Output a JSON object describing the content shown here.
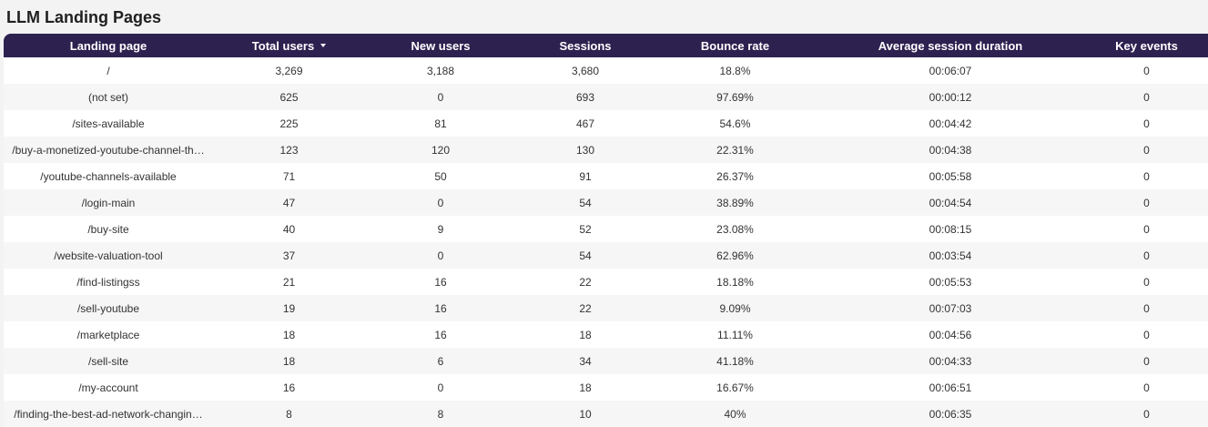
{
  "report": {
    "title": "LLM Landing Pages"
  },
  "table": {
    "headers": [
      "Landing page",
      "Total users",
      "New users",
      "Sessions",
      "Bounce rate",
      "Average session duration",
      "Key events"
    ],
    "sorted_column": "Total users",
    "sort_direction": "descending",
    "header_color": "#2d2150",
    "rows": [
      {
        "page": "/",
        "total_users": "3,269",
        "new_users": "3,188",
        "sessions": "3,680",
        "bounce_rate": "18.8%",
        "avg_duration": "00:06:07",
        "key_events": "0"
      },
      {
        "page": "(not set)",
        "total_users": "625",
        "new_users": "0",
        "sessions": "693",
        "bounce_rate": "97.69%",
        "avg_duration": "00:00:12",
        "key_events": "0"
      },
      {
        "page": "/sites-available",
        "total_users": "225",
        "new_users": "81",
        "sessions": "467",
        "bounce_rate": "54.6%",
        "avg_duration": "00:04:42",
        "key_events": "0"
      },
      {
        "page": "/buy-a-monetized-youtube-channel-th…",
        "total_users": "123",
        "new_users": "120",
        "sessions": "130",
        "bounce_rate": "22.31%",
        "avg_duration": "00:04:38",
        "key_events": "0"
      },
      {
        "page": "/youtube-channels-available",
        "total_users": "71",
        "new_users": "50",
        "sessions": "91",
        "bounce_rate": "26.37%",
        "avg_duration": "00:05:58",
        "key_events": "0"
      },
      {
        "page": "/login-main",
        "total_users": "47",
        "new_users": "0",
        "sessions": "54",
        "bounce_rate": "38.89%",
        "avg_duration": "00:04:54",
        "key_events": "0"
      },
      {
        "page": "/buy-site",
        "total_users": "40",
        "new_users": "9",
        "sessions": "52",
        "bounce_rate": "23.08%",
        "avg_duration": "00:08:15",
        "key_events": "0"
      },
      {
        "page": "/website-valuation-tool",
        "total_users": "37",
        "new_users": "0",
        "sessions": "54",
        "bounce_rate": "62.96%",
        "avg_duration": "00:03:54",
        "key_events": "0"
      },
      {
        "page": "/find-listingss",
        "total_users": "21",
        "new_users": "16",
        "sessions": "22",
        "bounce_rate": "18.18%",
        "avg_duration": "00:05:53",
        "key_events": "0"
      },
      {
        "page": "/sell-youtube",
        "total_users": "19",
        "new_users": "16",
        "sessions": "22",
        "bounce_rate": "9.09%",
        "avg_duration": "00:07:03",
        "key_events": "0"
      },
      {
        "page": "/marketplace",
        "total_users": "18",
        "new_users": "16",
        "sessions": "18",
        "bounce_rate": "11.11%",
        "avg_duration": "00:04:56",
        "key_events": "0"
      },
      {
        "page": "/sell-site",
        "total_users": "18",
        "new_users": "6",
        "sessions": "34",
        "bounce_rate": "41.18%",
        "avg_duration": "00:04:33",
        "key_events": "0"
      },
      {
        "page": "/my-account",
        "total_users": "16",
        "new_users": "0",
        "sessions": "18",
        "bounce_rate": "16.67%",
        "avg_duration": "00:06:51",
        "key_events": "0"
      },
      {
        "page": "/finding-the-best-ad-network-changin…",
        "total_users": "8",
        "new_users": "8",
        "sessions": "10",
        "bounce_rate": "40%",
        "avg_duration": "00:06:35",
        "key_events": "0"
      }
    ]
  }
}
